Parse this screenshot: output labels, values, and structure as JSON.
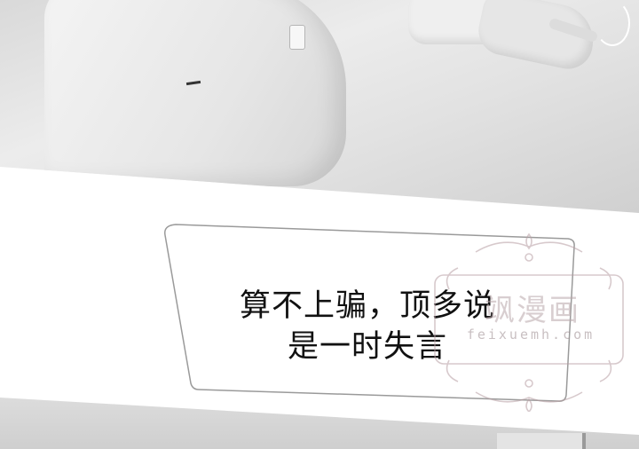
{
  "panel": {
    "speech_line_1": "算不上骗，顶多说",
    "speech_line_2": "是一时失言"
  },
  "watermark": {
    "title": "飒漫画",
    "url": "feixuemh.com"
  },
  "colors": {
    "background": "#ffffff",
    "text": "#111111",
    "watermark": "#b9a7aa"
  }
}
